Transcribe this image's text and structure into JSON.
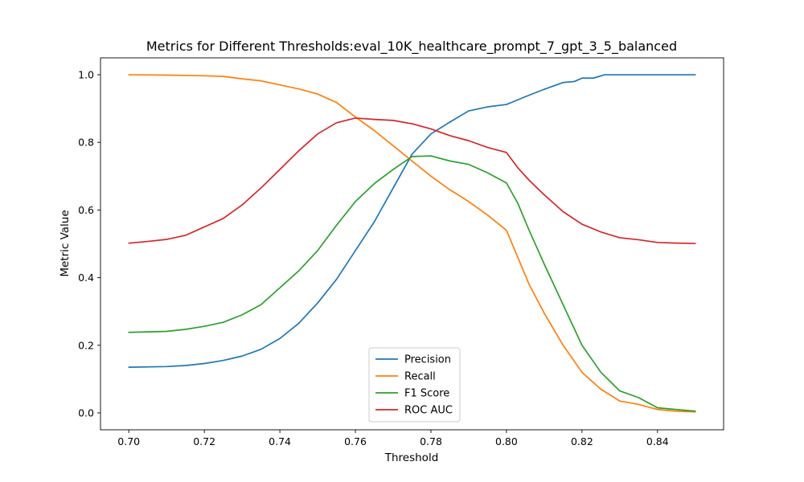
{
  "chart_data": {
    "type": "line",
    "title": "Metrics for Different Thresholds:eval_10K_healthcare_prompt_7_gpt_3_5_balanced",
    "xlabel": "Threshold",
    "ylabel": "Metric Value",
    "xlim": [
      0.6925,
      0.8575
    ],
    "ylim": [
      -0.05,
      1.05
    ],
    "xticks": [
      0.7,
      0.72,
      0.74,
      0.76,
      0.78,
      0.8,
      0.82,
      0.84
    ],
    "xtick_labels": [
      "0.70",
      "0.72",
      "0.74",
      "0.76",
      "0.78",
      "0.80",
      "0.82",
      "0.84"
    ],
    "yticks": [
      0.0,
      0.2,
      0.4,
      0.6,
      0.8,
      1.0
    ],
    "ytick_labels": [
      "0.0",
      "0.2",
      "0.4",
      "0.6",
      "0.8",
      "1.0"
    ],
    "grid": false,
    "legend_position": "lower center",
    "series": [
      {
        "name": "Precision",
        "color": "#1f77b4",
        "points": [
          [
            0.7,
            0.135
          ],
          [
            0.71,
            0.137
          ],
          [
            0.715,
            0.14
          ],
          [
            0.72,
            0.146
          ],
          [
            0.725,
            0.155
          ],
          [
            0.73,
            0.168
          ],
          [
            0.735,
            0.188
          ],
          [
            0.74,
            0.22
          ],
          [
            0.745,
            0.265
          ],
          [
            0.75,
            0.325
          ],
          [
            0.755,
            0.395
          ],
          [
            0.76,
            0.48
          ],
          [
            0.765,
            0.565
          ],
          [
            0.77,
            0.665
          ],
          [
            0.775,
            0.765
          ],
          [
            0.78,
            0.825
          ],
          [
            0.785,
            0.86
          ],
          [
            0.79,
            0.893
          ],
          [
            0.795,
            0.905
          ],
          [
            0.8,
            0.912
          ],
          [
            0.805,
            0.935
          ],
          [
            0.81,
            0.957
          ],
          [
            0.815,
            0.977
          ],
          [
            0.818,
            0.98
          ],
          [
            0.82,
            0.99
          ],
          [
            0.823,
            0.99
          ],
          [
            0.826,
            1.0
          ],
          [
            0.84,
            1.0
          ],
          [
            0.85,
            1.0
          ]
        ]
      },
      {
        "name": "Recall",
        "color": "#ff7f0e",
        "points": [
          [
            0.7,
            1.0
          ],
          [
            0.71,
            0.999
          ],
          [
            0.72,
            0.997
          ],
          [
            0.725,
            0.995
          ],
          [
            0.73,
            0.988
          ],
          [
            0.735,
            0.982
          ],
          [
            0.74,
            0.97
          ],
          [
            0.745,
            0.958
          ],
          [
            0.75,
            0.943
          ],
          [
            0.755,
            0.918
          ],
          [
            0.76,
            0.875
          ],
          [
            0.765,
            0.835
          ],
          [
            0.77,
            0.79
          ],
          [
            0.775,
            0.745
          ],
          [
            0.78,
            0.7
          ],
          [
            0.785,
            0.66
          ],
          [
            0.79,
            0.625
          ],
          [
            0.795,
            0.585
          ],
          [
            0.8,
            0.54
          ],
          [
            0.803,
            0.46
          ],
          [
            0.806,
            0.38
          ],
          [
            0.81,
            0.295
          ],
          [
            0.815,
            0.2
          ],
          [
            0.82,
            0.12
          ],
          [
            0.825,
            0.07
          ],
          [
            0.83,
            0.035
          ],
          [
            0.835,
            0.025
          ],
          [
            0.84,
            0.01
          ],
          [
            0.845,
            0.005
          ],
          [
            0.85,
            0.003
          ]
        ]
      },
      {
        "name": "F1 Score",
        "color": "#2ca02c",
        "points": [
          [
            0.7,
            0.238
          ],
          [
            0.71,
            0.241
          ],
          [
            0.715,
            0.247
          ],
          [
            0.72,
            0.256
          ],
          [
            0.725,
            0.268
          ],
          [
            0.73,
            0.29
          ],
          [
            0.735,
            0.32
          ],
          [
            0.74,
            0.37
          ],
          [
            0.745,
            0.42
          ],
          [
            0.75,
            0.48
          ],
          [
            0.755,
            0.555
          ],
          [
            0.76,
            0.625
          ],
          [
            0.765,
            0.678
          ],
          [
            0.77,
            0.72
          ],
          [
            0.775,
            0.758
          ],
          [
            0.78,
            0.76
          ],
          [
            0.785,
            0.745
          ],
          [
            0.79,
            0.735
          ],
          [
            0.795,
            0.71
          ],
          [
            0.8,
            0.68
          ],
          [
            0.803,
            0.62
          ],
          [
            0.806,
            0.54
          ],
          [
            0.81,
            0.44
          ],
          [
            0.815,
            0.32
          ],
          [
            0.82,
            0.2
          ],
          [
            0.825,
            0.12
          ],
          [
            0.83,
            0.065
          ],
          [
            0.835,
            0.045
          ],
          [
            0.84,
            0.015
          ],
          [
            0.845,
            0.01
          ],
          [
            0.85,
            0.005
          ]
        ]
      },
      {
        "name": "ROC AUC",
        "color": "#d62728",
        "points": [
          [
            0.7,
            0.502
          ],
          [
            0.705,
            0.507
          ],
          [
            0.71,
            0.513
          ],
          [
            0.715,
            0.525
          ],
          [
            0.72,
            0.55
          ],
          [
            0.725,
            0.575
          ],
          [
            0.73,
            0.615
          ],
          [
            0.735,
            0.665
          ],
          [
            0.74,
            0.72
          ],
          [
            0.745,
            0.775
          ],
          [
            0.75,
            0.825
          ],
          [
            0.755,
            0.858
          ],
          [
            0.76,
            0.872
          ],
          [
            0.765,
            0.868
          ],
          [
            0.77,
            0.865
          ],
          [
            0.775,
            0.855
          ],
          [
            0.78,
            0.84
          ],
          [
            0.785,
            0.82
          ],
          [
            0.79,
            0.805
          ],
          [
            0.795,
            0.785
          ],
          [
            0.8,
            0.77
          ],
          [
            0.803,
            0.725
          ],
          [
            0.806,
            0.688
          ],
          [
            0.81,
            0.645
          ],
          [
            0.815,
            0.595
          ],
          [
            0.82,
            0.558
          ],
          [
            0.825,
            0.535
          ],
          [
            0.83,
            0.518
          ],
          [
            0.835,
            0.512
          ],
          [
            0.84,
            0.504
          ],
          [
            0.845,
            0.502
          ],
          [
            0.85,
            0.501
          ]
        ]
      }
    ]
  }
}
